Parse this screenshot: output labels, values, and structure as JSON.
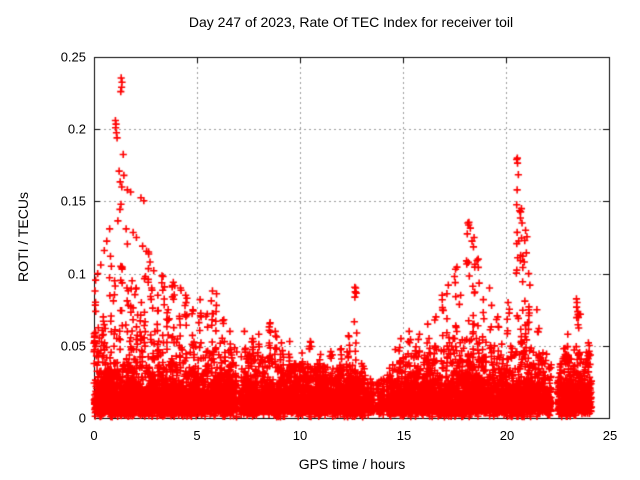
{
  "chart_data": {
    "type": "scatter",
    "title": "Day 247 of 2023, Rate Of TEC Index for receiver toil",
    "xlabel": "GPS time / hours",
    "ylabel": "ROTI / TECUs",
    "xlim": [
      0,
      25
    ],
    "ylim": [
      0,
      0.25
    ],
    "xticks": [
      0,
      5,
      10,
      15,
      20,
      25
    ],
    "yticks": [
      0,
      0.05,
      0.1,
      0.15,
      0.2,
      0.25
    ],
    "xtick_labels": [
      "0",
      "5",
      "10",
      "15",
      "20",
      "25"
    ],
    "ytick_labels": [
      "0",
      "0.05",
      "0.1",
      "0.15",
      "0.2",
      "0.25"
    ],
    "grid": true,
    "legend": "none",
    "colors": {
      "marker": "#ff0000",
      "grid": "#9b9b9b",
      "border": "#000000",
      "text": "#000000",
      "background": "#ffffff"
    },
    "marker": {
      "glyph": "plus",
      "half_size": 3.6,
      "stroke_width": 1.6
    },
    "seed": 7,
    "band_segments": [
      [
        0.0,
        0.35,
        150,
        0.088
      ],
      [
        0.35,
        2.6,
        900,
        0.075
      ],
      [
        2.6,
        4.7,
        820,
        0.07
      ],
      [
        4.7,
        6.95,
        820,
        0.058
      ],
      [
        7.05,
        9.3,
        780,
        0.046
      ],
      [
        9.3,
        13.15,
        1350,
        0.038
      ],
      [
        13.15,
        13.6,
        110,
        0.03
      ],
      [
        13.7,
        14.1,
        95,
        0.028
      ],
      [
        14.2,
        14.5,
        85,
        0.032
      ],
      [
        14.5,
        17.4,
        1050,
        0.05
      ],
      [
        17.4,
        19.9,
        920,
        0.058
      ],
      [
        19.9,
        21.3,
        520,
        0.065
      ],
      [
        21.3,
        22.2,
        300,
        0.048
      ],
      [
        22.5,
        24.15,
        580,
        0.05
      ]
    ],
    "spike_columns": [
      [
        0.05,
        0.088,
        12
      ],
      [
        0.45,
        0.07,
        8
      ],
      [
        0.8,
        0.112,
        8
      ],
      [
        1.0,
        0.095,
        8
      ],
      [
        1.3,
        0.105,
        10
      ],
      [
        1.6,
        0.09,
        8
      ],
      [
        1.85,
        0.095,
        8
      ],
      [
        2.05,
        0.09,
        8
      ],
      [
        2.3,
        0.08,
        8
      ],
      [
        2.5,
        0.098,
        8
      ],
      [
        2.65,
        0.115,
        6
      ],
      [
        2.8,
        0.09,
        8
      ],
      [
        3.1,
        0.085,
        8
      ],
      [
        3.35,
        0.098,
        8
      ],
      [
        3.6,
        0.075,
        8
      ],
      [
        3.85,
        0.094,
        10
      ],
      [
        4.2,
        0.09,
        8
      ],
      [
        4.45,
        0.085,
        8
      ],
      [
        4.8,
        0.075,
        8
      ],
      [
        5.15,
        0.082,
        8
      ],
      [
        5.5,
        0.072,
        6
      ],
      [
        5.75,
        0.088,
        8
      ],
      [
        5.95,
        0.086,
        6
      ],
      [
        6.3,
        0.068,
        6
      ],
      [
        6.6,
        0.06,
        5
      ],
      [
        7.3,
        0.06,
        6
      ],
      [
        7.7,
        0.055,
        5
      ],
      [
        8.0,
        0.058,
        5
      ],
      [
        8.55,
        0.066,
        10
      ],
      [
        8.8,
        0.06,
        6
      ],
      [
        9.1,
        0.052,
        5
      ],
      [
        9.5,
        0.053,
        4
      ],
      [
        10.1,
        0.045,
        4
      ],
      [
        10.5,
        0.053,
        5
      ],
      [
        11.0,
        0.044,
        4
      ],
      [
        11.5,
        0.046,
        4
      ],
      [
        12.0,
        0.048,
        5
      ],
      [
        12.35,
        0.057,
        6
      ],
      [
        12.7,
        0.09,
        8
      ],
      [
        14.9,
        0.055,
        5
      ],
      [
        15.3,
        0.06,
        6
      ],
      [
        15.8,
        0.058,
        5
      ],
      [
        16.2,
        0.065,
        6
      ],
      [
        16.6,
        0.07,
        6
      ],
      [
        16.9,
        0.085,
        6
      ],
      [
        17.2,
        0.092,
        7
      ],
      [
        17.55,
        0.103,
        6
      ],
      [
        17.8,
        0.085,
        6
      ],
      [
        18.15,
        0.135,
        12
      ],
      [
        18.45,
        0.125,
        12
      ],
      [
        18.65,
        0.11,
        8
      ],
      [
        18.9,
        0.082,
        6
      ],
      [
        19.3,
        0.078,
        6
      ],
      [
        19.6,
        0.07,
        5
      ],
      [
        20.1,
        0.08,
        6
      ],
      [
        20.55,
        0.18,
        10
      ],
      [
        20.75,
        0.145,
        14
      ],
      [
        20.95,
        0.13,
        10
      ],
      [
        21.1,
        0.1,
        8
      ],
      [
        21.6,
        0.062,
        5
      ],
      [
        23.0,
        0.058,
        5
      ],
      [
        23.45,
        0.08,
        8
      ],
      [
        23.55,
        0.072,
        6
      ],
      [
        24.0,
        0.052,
        5
      ]
    ],
    "outliers": [
      [
        1.32,
        0.2355
      ],
      [
        1.36,
        0.2325
      ],
      [
        1.34,
        0.229
      ],
      [
        1.3,
        0.226
      ],
      [
        1.04,
        0.206
      ],
      [
        1.07,
        0.2035
      ],
      [
        1.05,
        0.201
      ],
      [
        1.09,
        0.1975
      ],
      [
        1.12,
        0.194
      ],
      [
        1.42,
        0.1825
      ],
      [
        1.22,
        0.171
      ],
      [
        1.45,
        0.168
      ],
      [
        1.27,
        0.1635
      ],
      [
        1.35,
        0.16
      ],
      [
        1.62,
        0.158
      ],
      [
        1.78,
        0.1565
      ],
      [
        2.28,
        0.1525
      ],
      [
        2.42,
        0.1505
      ],
      [
        1.31,
        0.148
      ],
      [
        1.26,
        0.1445
      ],
      [
        1.16,
        0.1365
      ],
      [
        1.56,
        0.131
      ],
      [
        1.9,
        0.1285
      ],
      [
        2.06,
        0.125
      ],
      [
        1.62,
        0.1205
      ],
      [
        2.36,
        0.119
      ],
      [
        0.76,
        0.131
      ],
      [
        0.62,
        0.1225
      ],
      [
        0.5,
        0.116
      ],
      [
        0.33,
        0.106
      ],
      [
        0.18,
        0.1
      ],
      [
        0.08,
        0.0955
      ],
      [
        2.55,
        0.1155
      ],
      [
        2.72,
        0.108
      ],
      [
        2.9,
        0.102
      ],
      [
        3.3,
        0.0985
      ],
      [
        17.62,
        0.1045
      ],
      [
        17.5,
        0.098
      ],
      [
        18.2,
        0.1355
      ],
      [
        18.27,
        0.1315
      ],
      [
        18.12,
        0.1275
      ],
      [
        18.35,
        0.1225
      ],
      [
        18.42,
        0.1185
      ],
      [
        20.52,
        0.179
      ],
      [
        20.56,
        0.1765
      ],
      [
        20.6,
        0.1685
      ],
      [
        20.54,
        0.158
      ],
      [
        20.66,
        0.1435
      ],
      [
        20.7,
        0.1385
      ],
      [
        12.66,
        0.0905
      ],
      [
        12.73,
        0.0865
      ],
      [
        19.2,
        0.09
      ],
      [
        23.42,
        0.0825
      ],
      [
        21.5,
        0.075
      ],
      [
        10.52,
        0.0525
      ],
      [
        14.35,
        0.0345
      ]
    ]
  }
}
